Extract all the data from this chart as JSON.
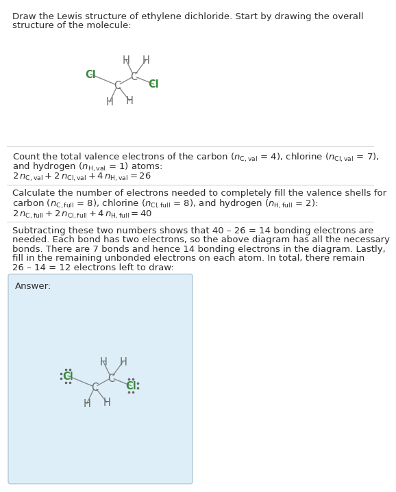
{
  "title_line1": "Draw the Lewis structure of ethylene dichloride. Start by drawing the overall",
  "title_line2": "structure of the molecule:",
  "s1_line1": "Count the total valence electrons of the carbon (⁠$n_{\\mathrm{C,val}}$⁠ = 4), chlorine (⁠$n_{\\mathrm{Cl,val}}$⁠ = 7),",
  "s1_line2": "and hydrogen (⁠$n_{\\mathrm{H,val}}$⁠ = 1) atoms:",
  "s1_eq": "$2\\, n_{\\mathrm{C,val}} + 2\\, n_{\\mathrm{Cl,val}} + 4\\, n_{\\mathrm{H,val}} = 26$",
  "s2_line1": "Calculate the number of electrons needed to completely fill the valence shells for",
  "s2_line2": "carbon (⁠$n_{\\mathrm{C,full}}$⁠ = 8), chlorine (⁠$n_{\\mathrm{Cl,full}}$⁠ = 8), and hydrogen (⁠$n_{\\mathrm{H,full}}$⁠ = 2):",
  "s2_eq": "$2\\, n_{\\mathrm{C,full}} + 2\\, n_{\\mathrm{Cl,full}} + 4\\, n_{\\mathrm{H,full}} = 40$",
  "s3_line1": "Subtracting these two numbers shows that 40 – 26 = 14 bonding electrons are",
  "s3_line2": "needed. Each bond has two electrons, so the above diagram has all the necessary",
  "s3_line3": "bonds. There are 7 bonds and hence 14 bonding electrons in the diagram. Lastly,",
  "s3_line4": "fill in the remaining unbonded electrons on each atom. In total, there remain",
  "s3_line5": "26 – 14 = 12 electrons left to draw:",
  "answer_label": "Answer:",
  "bg_color": "#ffffff",
  "answer_bg": "#ddeef8",
  "answer_border": "#b0c8d8",
  "text_color": "#2b2b2b",
  "C_color": "#666666",
  "Cl_color": "#3a8a3a",
  "H_color": "#666666",
  "bond_color": "#888888",
  "sep_color": "#cccccc",
  "fs_text": 9.5,
  "fs_mol": 10.5,
  "fs_eq": 9.5,
  "lh": 13.5
}
